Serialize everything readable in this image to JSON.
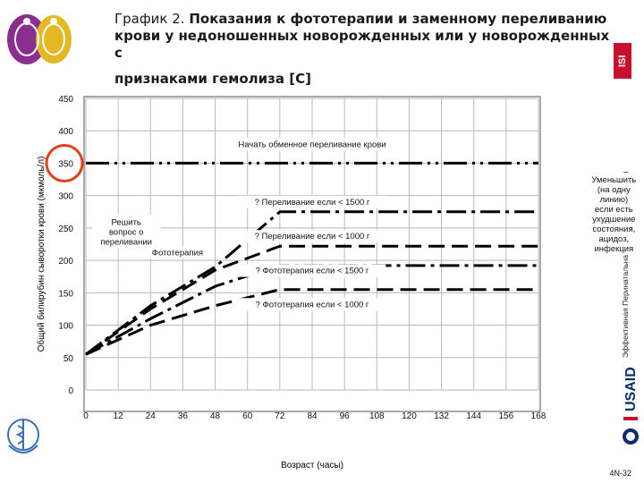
{
  "header": {
    "title_prefix": "График 2.",
    "title_bold_1": "Показания к фототерапии и заменному переливанию",
    "title_bold_2": "крови у недоношенных новорожденных или у новорожденных с",
    "title_bold_3": "признаками гемолиза [С]"
  },
  "side": {
    "vertical_text": "Эффективная Перинатальная Помощь и Уход (ЭПУ)",
    "isi_label": "ISI",
    "usaid_label": "USAID"
  },
  "footer": {
    "page_number": "4N-32"
  },
  "colors": {
    "dark_line": "#000000",
    "accent_circle": "#e0401a",
    "title_text": "#1a1a1a"
  },
  "chart_data": {
    "type": "line",
    "xlabel": "Возраст (часы)",
    "ylabel": "Общий билирубин сыворотки крови (мкмоль/л)",
    "x_ticks": [
      "0",
      "12",
      "24",
      "36",
      "48",
      "60",
      "72",
      "84",
      "96",
      "108",
      "120",
      "132",
      "144",
      "156",
      "168"
    ],
    "y_ticks": [
      "0",
      "50",
      "100",
      "150",
      "200",
      "250",
      "300",
      "350",
      "400",
      "450"
    ],
    "xlim": [
      0,
      168
    ],
    "ylim": [
      0,
      450
    ],
    "grid": true,
    "highlighted_tick": "350",
    "series": [
      {
        "name": "Начать обменное переливание крови",
        "points": [
          [
            0,
            350
          ],
          [
            168,
            350
          ]
        ],
        "style": "dash-dot-dot"
      },
      {
        "name": "? Переливание если < 1500 г",
        "points": [
          [
            0,
            55
          ],
          [
            24,
            130
          ],
          [
            48,
            190
          ],
          [
            72,
            275
          ],
          [
            168,
            275
          ]
        ],
        "style": "dash-dot"
      },
      {
        "name": "? Переливание если < 1000 г",
        "points": [
          [
            0,
            55
          ],
          [
            24,
            125
          ],
          [
            48,
            185
          ],
          [
            72,
            222
          ],
          [
            168,
            222
          ]
        ],
        "style": "dash"
      },
      {
        "name": "? Фототерапия если < 1500 г",
        "points": [
          [
            0,
            55
          ],
          [
            24,
            110
          ],
          [
            48,
            160
          ],
          [
            72,
            192
          ],
          [
            168,
            192
          ]
        ],
        "style": "dash-dot"
      },
      {
        "name": "? Фототерапия если < 1000 г",
        "points": [
          [
            0,
            55
          ],
          [
            24,
            100
          ],
          [
            48,
            130
          ],
          [
            72,
            155
          ],
          [
            168,
            155
          ]
        ],
        "style": "dash"
      }
    ],
    "annotations": [
      {
        "text": "Начать обменное переливание крови",
        "x": 84,
        "y": 375
      },
      {
        "text": "? Переливание если < 1500 г",
        "x": 84,
        "y": 286
      },
      {
        "text": "? Переливание если < 1000 г",
        "x": 84,
        "y": 233
      },
      {
        "text": "? Фототерапия если < 1500 г",
        "x": 84,
        "y": 180
      },
      {
        "text": "? Фототерапия если < 1000 г",
        "x": 84,
        "y": 128
      },
      {
        "lines": [
          "Решить",
          "вопрос о",
          "переливании"
        ],
        "x": 15,
        "y": 255
      },
      {
        "text": "Фототерапия",
        "x": 34,
        "y": 208
      },
      {
        "lines": [
          "Уменьшить",
          "(на одну",
          "линию)",
          "если есть",
          "ухудшение",
          "состояния,",
          "ацидоз,",
          "инфекция"
        ],
        "x": 196,
        "y": 320
      }
    ]
  }
}
